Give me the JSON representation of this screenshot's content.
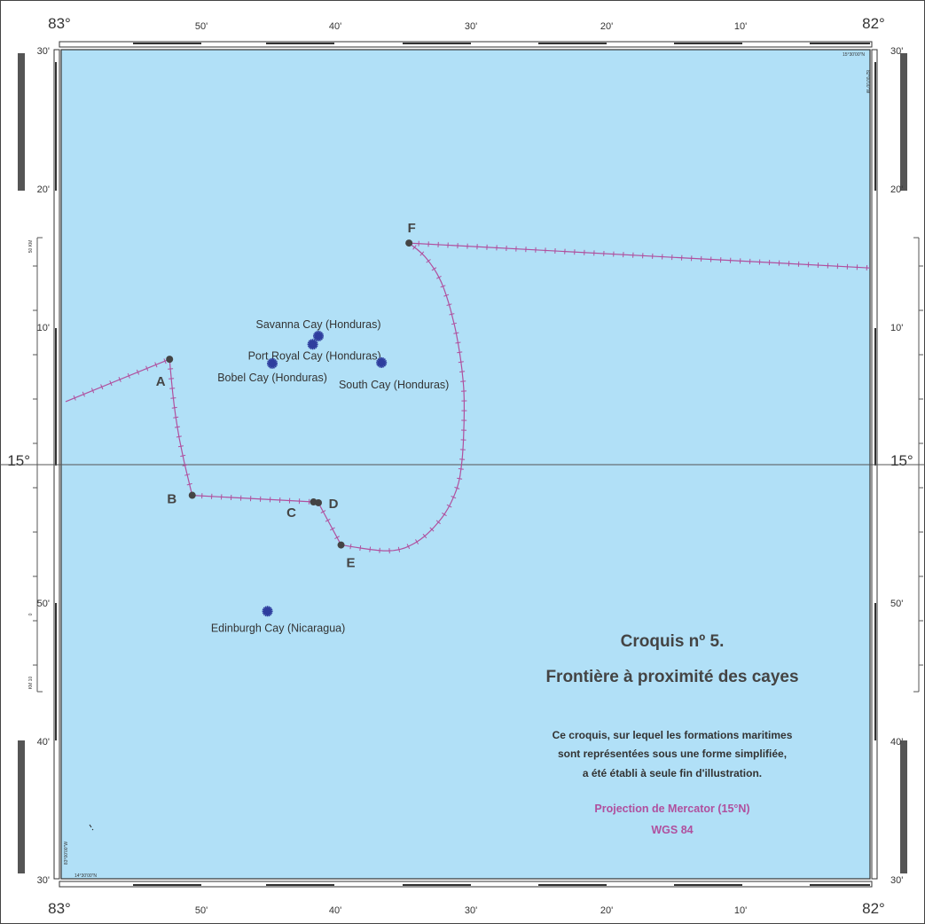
{
  "map": {
    "title": "Croquis nº 5.",
    "subtitle": "Frontière à proximité des cayes",
    "note_lines": [
      "Ce croquis, sur lequel les formations maritimes",
      "sont représentées sous une forme simplifiée,",
      "a été établi à seule fin d'illustration."
    ],
    "projection": "Projection de Mercator (15°N)",
    "datum": "WGS 84",
    "colors": {
      "sea": "#b1e0f7",
      "boundary": "#b0509e",
      "cay": "#2e3d9e",
      "point": "#444444",
      "legend_accent": "#b0509e"
    },
    "lon_degree_labels": {
      "west": "83°",
      "east": "82°"
    },
    "lon_minute_labels": [
      "50'",
      "40'",
      "30'",
      "20'",
      "10'"
    ],
    "lat_degree_label": "15°",
    "lat_minute_labels_north": [
      "30'",
      "20'",
      "10'"
    ],
    "lat_minute_labels_south": [
      "50'",
      "40'",
      "30'"
    ],
    "corner_marks": {
      "top_right": "15°30'00\"N",
      "top_right_vertical": "82°00'00\"W",
      "bottom_left": "14°30'00\"N",
      "bottom_left_vertical": "83°00'00\"W"
    },
    "scale_labels": {
      "km50": "50 KM",
      "km0": "0",
      "km10": "KM 10"
    },
    "points": [
      {
        "label": "A",
        "lon": -82.866,
        "lat": 15.127
      },
      {
        "label": "B",
        "lon": -82.838,
        "lat": 14.963
      },
      {
        "label": "C",
        "lon": -82.688,
        "lat": 14.955
      },
      {
        "label": "D",
        "lon": -82.682,
        "lat": 14.954
      },
      {
        "label": "E",
        "lon": -82.654,
        "lat": 14.903
      },
      {
        "label": "F",
        "lon": -82.57,
        "lat": 15.267
      }
    ],
    "cays": [
      {
        "name": "Savanna Cay (Honduras)",
        "lon": -82.682,
        "lat": 15.155
      },
      {
        "name": "Port Royal Cay (Honduras)",
        "lon": -82.689,
        "lat": 15.145
      },
      {
        "name": "Bobel Cay (Honduras)",
        "lon": -82.739,
        "lat": 15.122
      },
      {
        "name": "South Cay (Honduras)",
        "lon": -82.604,
        "lat": 15.123
      },
      {
        "name": "Edinburgh Cay (Nicaragua)",
        "lon": -82.745,
        "lat": 14.823
      }
    ]
  }
}
